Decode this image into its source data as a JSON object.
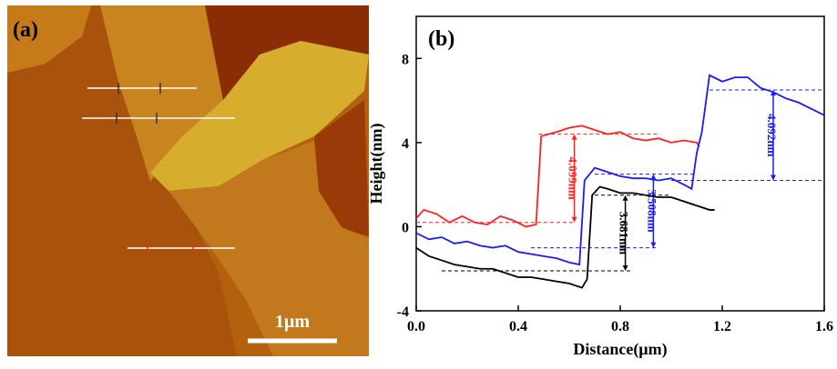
{
  "panel_a": {
    "label": "(a)",
    "scale_bar": "1µm"
  },
  "chart_data": {
    "type": "line",
    "label": "(b)",
    "x_label": "Distance(µm)",
    "y_label": "Height(nm)",
    "xlim": [
      0,
      1.6
    ],
    "ylim": [
      -4,
      10
    ],
    "xticks": [
      {
        "value": 0,
        "label": "0.0"
      },
      0.4,
      0.8,
      1.2,
      1.6
    ],
    "yticks": [
      -4,
      0,
      4,
      8
    ],
    "series": [
      {
        "color": "#ff2020",
        "x": [
          0,
          0.03,
          0.08,
          0.13,
          0.18,
          0.23,
          0.28,
          0.33,
          0.38,
          0.43,
          0.47,
          0.49,
          0.55,
          0.6,
          0.65,
          0.7,
          0.75,
          0.8,
          0.85,
          0.9,
          0.95,
          1.0,
          1.05,
          1.1,
          1.11
        ],
        "values": [
          0.4,
          0.8,
          0.6,
          0.2,
          0.5,
          0.2,
          0.1,
          0.5,
          0.3,
          0.0,
          0.1,
          4.3,
          4.5,
          4.7,
          4.8,
          4.6,
          4.4,
          4.5,
          4.2,
          4.1,
          4.2,
          4.0,
          4.1,
          4.0,
          3.8
        ]
      },
      {
        "color": "#1a1aff",
        "x": [
          0,
          0.05,
          0.1,
          0.15,
          0.2,
          0.25,
          0.3,
          0.35,
          0.4,
          0.45,
          0.5,
          0.55,
          0.6,
          0.64,
          0.66,
          0.7,
          0.75,
          0.8,
          0.85,
          0.9,
          0.95,
          1.0,
          1.05,
          1.08,
          1.1,
          1.12,
          1.15,
          1.2,
          1.25,
          1.3,
          1.35,
          1.4,
          1.45,
          1.5,
          1.55,
          1.6
        ],
        "values": [
          -0.3,
          -0.6,
          -0.5,
          -0.8,
          -0.7,
          -0.9,
          -1.0,
          -0.9,
          -1.2,
          -1.3,
          -1.4,
          -1.5,
          -1.7,
          -1.8,
          2.2,
          2.8,
          2.6,
          2.4,
          2.3,
          2.3,
          2.2,
          2.3,
          2.0,
          1.8,
          3.5,
          4.5,
          7.2,
          6.9,
          7.1,
          7.1,
          6.6,
          6.4,
          6.1,
          5.9,
          5.6,
          5.3
        ]
      },
      {
        "color": "#000000",
        "x": [
          0,
          0.05,
          0.1,
          0.15,
          0.2,
          0.25,
          0.3,
          0.35,
          0.4,
          0.45,
          0.5,
          0.55,
          0.6,
          0.65,
          0.67,
          0.69,
          0.72,
          0.75,
          0.8,
          0.85,
          0.9,
          0.95,
          1.0,
          1.05,
          1.1,
          1.15,
          1.17
        ],
        "values": [
          -1.0,
          -1.4,
          -1.6,
          -1.8,
          -1.9,
          -2.0,
          -2.0,
          -2.2,
          -2.4,
          -2.4,
          -2.5,
          -2.6,
          -2.7,
          -2.9,
          -2.5,
          1.5,
          1.9,
          1.8,
          1.6,
          1.6,
          1.5,
          1.4,
          1.4,
          1.2,
          1.0,
          0.8,
          0.8
        ]
      }
    ],
    "annotations": [
      {
        "text": "4.099nm",
        "color": "#ff2020",
        "x": 0.62,
        "low": 0.2,
        "high": 4.4,
        "low_span": [
          0,
          0.62
        ],
        "high_span": [
          0.48,
          0.95
        ]
      },
      {
        "text": "3.508nm",
        "color": "#1a1aff",
        "x": 0.93,
        "low": -1.0,
        "high": 2.5,
        "low_span": [
          0.45,
          0.95
        ],
        "high_span": [
          0.7,
          1.1
        ]
      },
      {
        "text": "3.681nm",
        "color": "#000000",
        "x": 0.82,
        "low": -2.1,
        "high": 1.5,
        "low_span": [
          0.1,
          0.85
        ],
        "high_span": [
          0.7,
          1.0
        ]
      },
      {
        "text": "4.092nm",
        "color": "#1a1aff",
        "x": 1.4,
        "low": 2.2,
        "high": 6.5,
        "low_span": [
          1.0,
          1.6
        ],
        "high_span": [
          1.15,
          1.6
        ]
      }
    ]
  }
}
